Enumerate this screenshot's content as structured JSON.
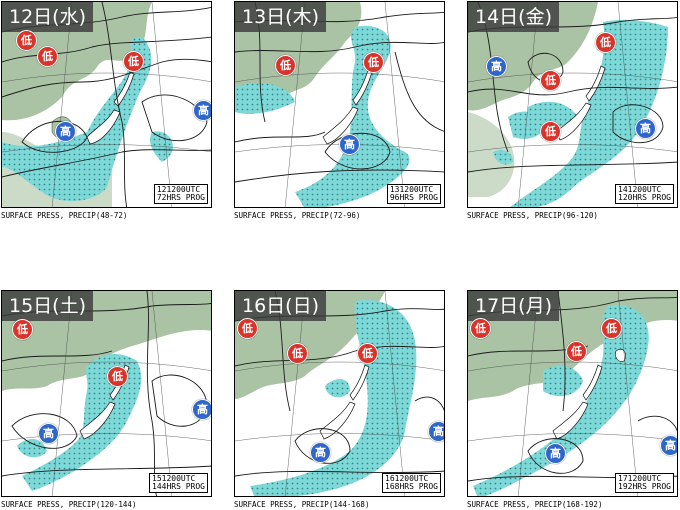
{
  "panels": [
    {
      "day": "12日(水)",
      "stamp1": "121200UTC",
      "stamp2": "72HRS PROG",
      "caption": "SURFACE PRESS, PRECIP(48-72)",
      "lows": [
        "低",
        "低",
        "低"
      ],
      "highs": [
        "高",
        "高"
      ]
    },
    {
      "day": "13日(木)",
      "stamp1": "131200UTC",
      "stamp2": "96HRS PROG",
      "caption": "SURFACE PRESS, PRECIP(72-96)",
      "lows": [
        "低",
        "低"
      ],
      "highs": [
        "高"
      ]
    },
    {
      "day": "14日(金)",
      "stamp1": "141200UTC",
      "stamp2": "120HRS PROG",
      "caption": "SURFACE PRESS, PRECIP(96-120)",
      "lows": [
        "低",
        "低",
        "低"
      ],
      "highs": [
        "高",
        "高"
      ]
    },
    {
      "day": "15日(土)",
      "stamp1": "151200UTC",
      "stamp2": "144HRS PROG",
      "caption": "SURFACE PRESS, PRECIP(120-144)",
      "lows": [
        "低",
        "低"
      ],
      "highs": [
        "高",
        "高"
      ]
    },
    {
      "day": "16日(日)",
      "stamp1": "161200UTC",
      "stamp2": "168HRS PROG",
      "caption": "SURFACE PRESS, PRECIP(144-168)",
      "lows": [
        "低",
        "低",
        "低"
      ],
      "highs": [
        "高",
        "高"
      ]
    },
    {
      "day": "17日(月)",
      "stamp1": "171200UTC",
      "stamp2": "192HRS PROG",
      "caption": "SURFACE PRESS, PRECIP(168-192)",
      "lows": [
        "低",
        "低",
        "低"
      ],
      "highs": [
        "高",
        "高"
      ]
    }
  ],
  "colors": {
    "land": "#a9c3a4",
    "precip": "#7fd8d8",
    "dots": "#2d8a8a",
    "isobar": "#1a1a1a",
    "low": "#d9342b",
    "high": "#2f66cc"
  }
}
